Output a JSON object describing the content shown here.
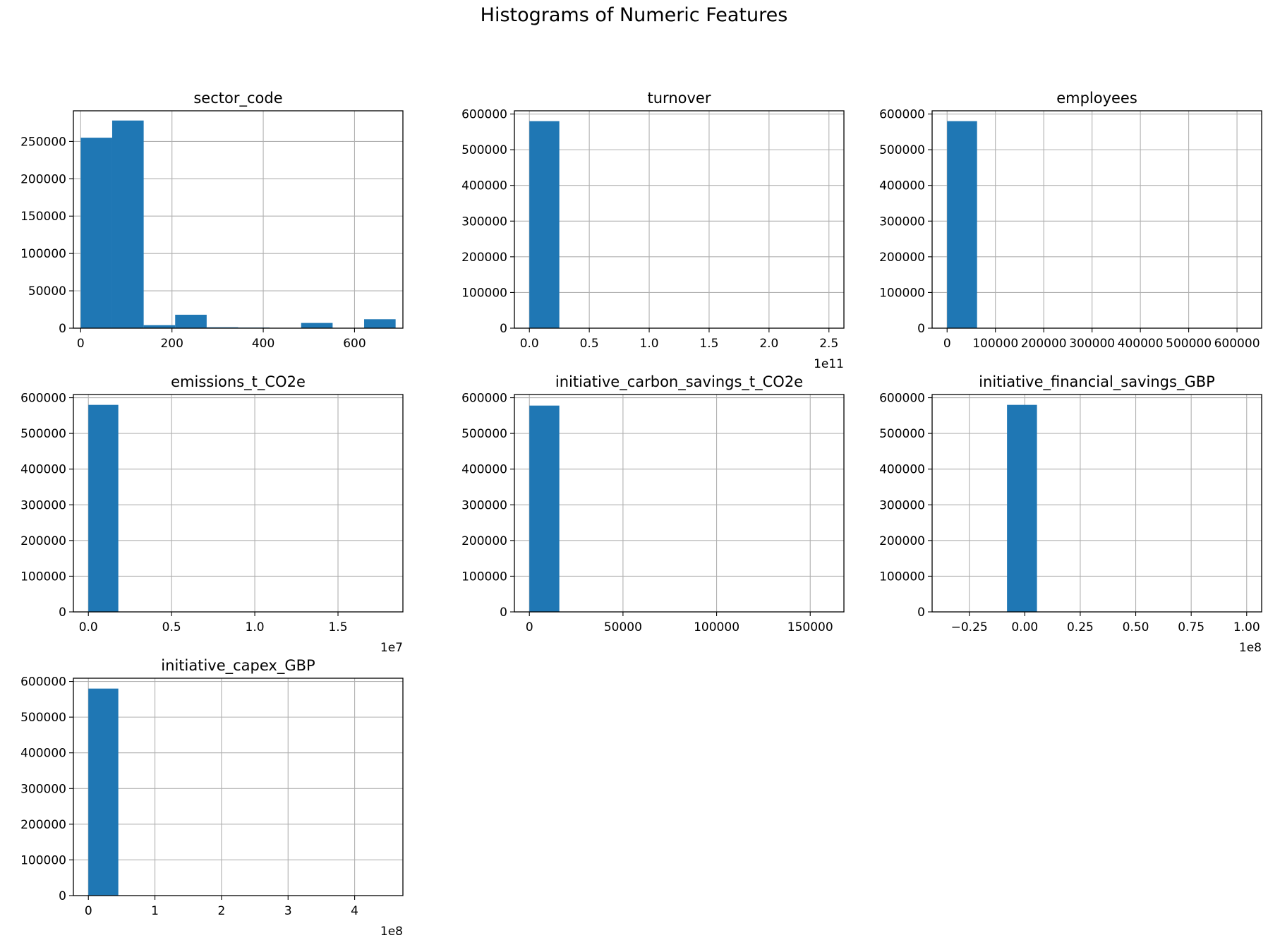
{
  "suptitle": "Histograms of Numeric Features",
  "colors": {
    "bar": "#1f77b4",
    "grid": "#b0b0b0",
    "axis": "#000000"
  },
  "chart_data": [
    {
      "type": "bar",
      "title": "sector_code",
      "bin_edges": [
        0,
        69,
        138,
        207,
        276,
        345,
        414,
        483,
        552,
        621,
        690
      ],
      "values": [
        255000,
        278000,
        4000,
        18000,
        1200,
        800,
        300,
        7000,
        0,
        12000
      ],
      "xlim": [
        -16,
        706
      ],
      "ylim": [
        0,
        291000
      ],
      "xticks": [
        0,
        200,
        400,
        600
      ],
      "xtick_labels": [
        "0",
        "200",
        "400",
        "600"
      ],
      "yticks": [
        0,
        50000,
        100000,
        150000,
        200000,
        250000
      ],
      "ytick_labels": [
        "0",
        "50000",
        "100000",
        "150000",
        "200000",
        "250000"
      ],
      "offset_text": "",
      "grid": true
    },
    {
      "type": "bar",
      "title": "turnover",
      "bin_edges": [
        0,
        25000000000.0,
        50000000000.0,
        75000000000.0,
        100000000000.0,
        125000000000.0,
        150000000000.0,
        175000000000.0,
        200000000000.0,
        225000000000.0,
        250000000000.0
      ],
      "values": [
        580000,
        0,
        0,
        0,
        0,
        0,
        0,
        0,
        0,
        0
      ],
      "xlim": [
        -12500000000.0,
        262500000000.0
      ],
      "ylim": [
        0,
        609000
      ],
      "xticks": [
        0,
        50000000000.0,
        100000000000.0,
        150000000000.0,
        200000000000.0,
        250000000000.0
      ],
      "xtick_labels": [
        "0.0",
        "0.5",
        "1.0",
        "1.5",
        "2.0",
        "2.5"
      ],
      "yticks": [
        0,
        100000,
        200000,
        300000,
        400000,
        500000,
        600000
      ],
      "ytick_labels": [
        "0",
        "100000",
        "200000",
        "300000",
        "400000",
        "500000",
        "600000"
      ],
      "offset_text": "1e11",
      "grid": true
    },
    {
      "type": "bar",
      "title": "employees",
      "bin_edges": [
        0,
        62000,
        124000,
        186000,
        248000,
        310000,
        372000,
        434000,
        496000,
        558000,
        620000
      ],
      "values": [
        580000,
        0,
        0,
        0,
        0,
        0,
        0,
        0,
        0,
        0
      ],
      "xlim": [
        -31000,
        651000
      ],
      "ylim": [
        0,
        609000
      ],
      "xticks": [
        0,
        100000,
        200000,
        300000,
        400000,
        500000,
        600000
      ],
      "xtick_labels": [
        "0",
        "100000",
        "200000",
        "300000",
        "400000",
        "500000",
        "600000"
      ],
      "yticks": [
        0,
        100000,
        200000,
        300000,
        400000,
        500000,
        600000
      ],
      "ytick_labels": [
        "0",
        "100000",
        "200000",
        "300000",
        "400000",
        "500000",
        "600000"
      ],
      "offset_text": "",
      "grid": true
    },
    {
      "type": "bar",
      "title": "emissions_t_CO2e",
      "bin_edges": [
        0,
        1800000.0,
        3600000.0,
        5400000.0,
        7200000.0,
        9000000.0,
        10800000.0,
        12600000.0,
        14400000.0,
        16200000.0,
        18000000.0
      ],
      "values": [
        580000,
        0,
        0,
        0,
        0,
        0,
        0,
        0,
        0,
        0
      ],
      "xlim": [
        -900000.0,
        18900000.0
      ],
      "ylim": [
        0,
        609000
      ],
      "xticks": [
        0,
        5000000.0,
        10000000.0,
        15000000.0
      ],
      "xtick_labels": [
        "0.0",
        "0.5",
        "1.0",
        "1.5"
      ],
      "yticks": [
        0,
        100000,
        200000,
        300000,
        400000,
        500000,
        600000
      ],
      "ytick_labels": [
        "0",
        "100000",
        "200000",
        "300000",
        "400000",
        "500000",
        "600000"
      ],
      "offset_text": "1e7",
      "grid": true
    },
    {
      "type": "bar",
      "title": "initiative_carbon_savings_t_CO2e",
      "bin_edges": [
        0,
        16000,
        32000,
        48000,
        64000,
        80000,
        96000,
        112000,
        128000,
        144000,
        160000
      ],
      "values": [
        578000,
        0,
        0,
        0,
        0,
        0,
        0,
        0,
        0,
        0
      ],
      "xlim": [
        -8000,
        168000
      ],
      "ylim": [
        0,
        609000
      ],
      "xticks": [
        0,
        50000,
        100000,
        150000
      ],
      "xtick_labels": [
        "0",
        "50000",
        "100000",
        "150000"
      ],
      "yticks": [
        0,
        100000,
        200000,
        300000,
        400000,
        500000,
        600000
      ],
      "ytick_labels": [
        "0",
        "100000",
        "200000",
        "300000",
        "400000",
        "500000",
        "600000"
      ],
      "offset_text": "",
      "grid": true
    },
    {
      "type": "bar",
      "title": "initiative_financial_savings_GBP",
      "bin_edges": [
        -35000000.0,
        -21500000.0,
        -8000000.0,
        5500000.0,
        19000000.0,
        32500000.0,
        46000000.0,
        59500000.0,
        73000000.0,
        86500000.0,
        100000000.0
      ],
      "values": [
        0,
        0,
        580000,
        0,
        0,
        0,
        0,
        0,
        0,
        0
      ],
      "xlim": [
        -41750000.0,
        106750000.0
      ],
      "ylim": [
        0,
        609000
      ],
      "xticks": [
        -25000000.0,
        0,
        25000000.0,
        50000000.0,
        75000000.0,
        100000000.0
      ],
      "xtick_labels": [
        "−0.25",
        "0.00",
        "0.25",
        "0.50",
        "0.75",
        "1.00"
      ],
      "yticks": [
        0,
        100000,
        200000,
        300000,
        400000,
        500000,
        600000
      ],
      "ytick_labels": [
        "0",
        "100000",
        "200000",
        "300000",
        "400000",
        "500000",
        "600000"
      ],
      "offset_text": "1e8",
      "grid": true
    },
    {
      "type": "bar",
      "title": "initiative_capex_GBP",
      "bin_edges": [
        0,
        45000000.0,
        90000000.0,
        135000000.0,
        180000000.0,
        225000000.0,
        270000000.0,
        315000000.0,
        360000000.0,
        405000000.0,
        450000000.0
      ],
      "values": [
        580000,
        0,
        0,
        0,
        0,
        0,
        0,
        0,
        0,
        0
      ],
      "xlim": [
        -22500000.0,
        472500000.0
      ],
      "ylim": [
        0,
        609000
      ],
      "xticks": [
        0,
        100000000.0,
        200000000.0,
        300000000.0,
        400000000.0
      ],
      "xtick_labels": [
        "0",
        "1",
        "2",
        "3",
        "4"
      ],
      "yticks": [
        0,
        100000,
        200000,
        300000,
        400000,
        500000,
        600000
      ],
      "ytick_labels": [
        "0",
        "100000",
        "200000",
        "300000",
        "400000",
        "500000",
        "600000"
      ],
      "offset_text": "1e8",
      "grid": true
    }
  ]
}
